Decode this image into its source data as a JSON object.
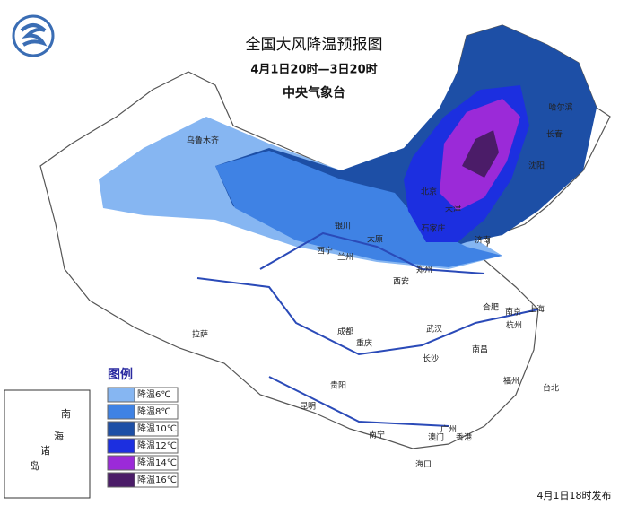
{
  "header": {
    "title": "全国大风降温预报图",
    "period": "4月1日20时—3日20时",
    "agency": "中央气象台"
  },
  "legend": {
    "title": "图例",
    "items": [
      {
        "label": "降温6℃",
        "color": "#86b6f2"
      },
      {
        "label": "降温8℃",
        "color": "#3f82e4"
      },
      {
        "label": "降温10℃",
        "color": "#1d4fa6"
      },
      {
        "label": "降温12℃",
        "color": "#1c2fe0"
      },
      {
        "label": "降温14℃",
        "color": "#9b2ad8"
      },
      {
        "label": "降温16℃",
        "color": "#4b1c68"
      }
    ]
  },
  "cities": [
    "乌鲁木齐",
    "哈尔滨",
    "长春",
    "沈阳",
    "北京",
    "天津",
    "石家庄",
    "济南",
    "银川",
    "兰州",
    "西宁",
    "太原",
    "郑州",
    "西安",
    "合肥",
    "南京",
    "上海",
    "杭州",
    "武汉",
    "成都",
    "重庆",
    "拉萨",
    "长沙",
    "南昌",
    "贵阳",
    "昆明",
    "福州",
    "台北",
    "南宁",
    "广州",
    "香港",
    "澳门",
    "海口"
  ],
  "inset": {
    "labels": [
      "南",
      "海",
      "诸",
      "岛"
    ]
  },
  "footer": "4月1日18时发布"
}
